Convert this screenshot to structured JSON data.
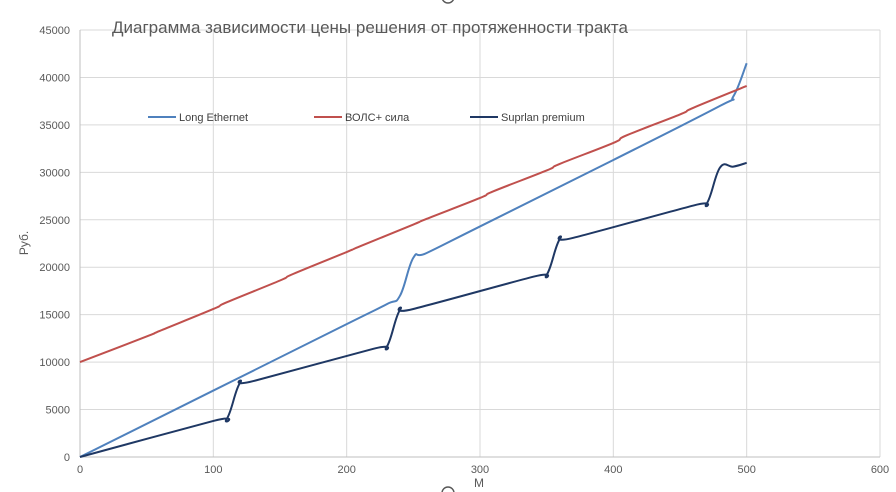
{
  "chart_data": {
    "type": "line",
    "title": "Диаграмма зависимости цены решения от протяженности тракта",
    "xlabel": "М",
    "ylabel": "Руб.",
    "xlim": [
      0,
      600
    ],
    "ylim": [
      0,
      45000
    ],
    "x_ticks": [
      "0",
      "100",
      "200",
      "300",
      "400",
      "500",
      "600"
    ],
    "y_ticks": [
      "0",
      "5000",
      "10000",
      "15000",
      "20000",
      "25000",
      "30000",
      "35000",
      "40000",
      "45000"
    ],
    "grid": true,
    "legend_position": "top-left inside",
    "series": [
      {
        "name": "Long Ethernet",
        "color": "#4f81bd",
        "points": [
          [
            0,
            0
          ],
          [
            100,
            7000
          ],
          [
            200,
            14000
          ],
          [
            230,
            16100
          ],
          [
            240,
            17000
          ],
          [
            250,
            21000
          ],
          [
            260,
            21500
          ],
          [
            300,
            24300
          ],
          [
            400,
            31300
          ],
          [
            480,
            37000
          ],
          [
            490,
            38000
          ],
          [
            500,
            41500
          ]
        ]
      },
      {
        "name": "ВОЛС+ сила",
        "color": "#c0504d",
        "points": [
          [
            0,
            10000
          ],
          [
            50,
            12700
          ],
          [
            60,
            13300
          ],
          [
            100,
            15600
          ],
          [
            110,
            16300
          ],
          [
            150,
            18600
          ],
          [
            160,
            19300
          ],
          [
            200,
            21600
          ],
          [
            210,
            22200
          ],
          [
            250,
            24500
          ],
          [
            260,
            25100
          ],
          [
            300,
            27300
          ],
          [
            310,
            28000
          ],
          [
            350,
            30200
          ],
          [
            360,
            30900
          ],
          [
            400,
            33100
          ],
          [
            410,
            33900
          ],
          [
            450,
            36100
          ],
          [
            460,
            36800
          ],
          [
            500,
            39100
          ]
        ]
      },
      {
        "name": "Suprlan premium",
        "color": "#1f3864",
        "points": [
          [
            0,
            0
          ],
          [
            100,
            3800
          ],
          [
            110,
            4000
          ],
          [
            120,
            7800
          ],
          [
            130,
            8000
          ],
          [
            220,
            11400
          ],
          [
            230,
            11600
          ],
          [
            240,
            15500
          ],
          [
            250,
            15600
          ],
          [
            340,
            19000
          ],
          [
            350,
            19200
          ],
          [
            360,
            23000
          ],
          [
            370,
            23100
          ],
          [
            460,
            26500
          ],
          [
            470,
            26700
          ],
          [
            480,
            30500
          ],
          [
            490,
            30600
          ],
          [
            500,
            31000
          ]
        ]
      }
    ]
  }
}
